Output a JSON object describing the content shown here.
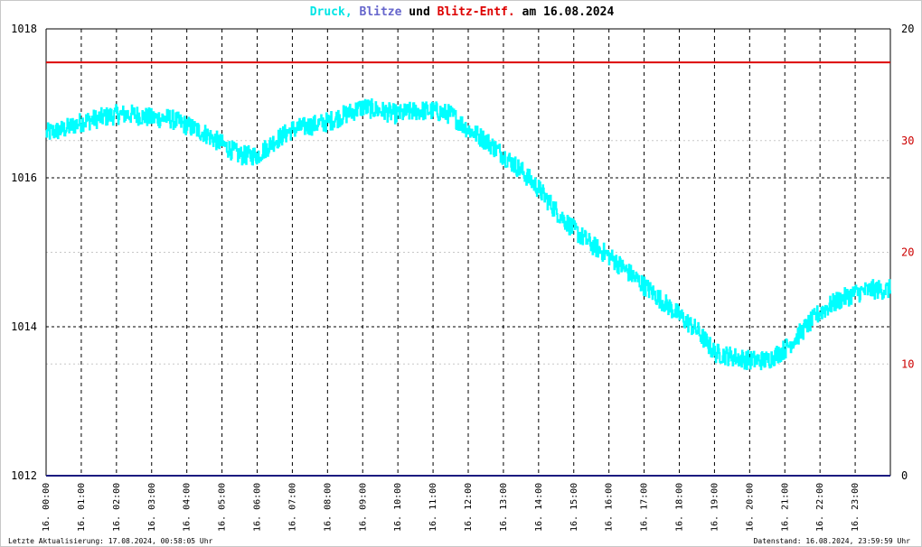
{
  "title": {
    "part1": "Druck,",
    "part2": "Blitze",
    "part3": "und",
    "part4": "Blitz-Entf.",
    "part5": "am 16.08.2024",
    "colors": {
      "druck": "#00e5e5",
      "blitze": "#6666cc",
      "blitz_entf": "#dd0000",
      "text": "#000000"
    }
  },
  "footer": {
    "left": "Letzte Aktualisierung: 17.08.2024, 00:58:05 Uhr",
    "right": "Datenstand: 16.08.2024, 23:59:59 Uhr"
  },
  "chart_data": {
    "type": "line",
    "x_tick_labels": [
      "16. 00:00",
      "16. 01:00",
      "16. 02:00",
      "16. 03:00",
      "16. 04:00",
      "16. 05:00",
      "16. 06:00",
      "16. 07:00",
      "16. 08:00",
      "16. 09:00",
      "16. 10:00",
      "16. 11:00",
      "16. 12:00",
      "16. 13:00",
      "16. 14:00",
      "16. 15:00",
      "16. 16:00",
      "16. 17:00",
      "16. 18:00",
      "16. 19:00",
      "16. 20:00",
      "16. 21:00",
      "16. 22:00",
      "16. 23:00"
    ],
    "x_range_hours": [
      0,
      24
    ],
    "y_left": {
      "ticks": [
        1012,
        1014,
        1016,
        1018
      ],
      "range": [
        1012,
        1018
      ]
    },
    "y_right_black": {
      "ticks": [
        0,
        20
      ],
      "range": [
        0,
        20
      ]
    },
    "y_right_red": {
      "ticks": [
        10,
        20,
        30
      ],
      "range": [
        0,
        40
      ]
    },
    "grid": true,
    "series": [
      {
        "name": "Druck",
        "color": "#00ffff",
        "axis": "left",
        "x": [
          0,
          0.5,
          1,
          1.5,
          2,
          2.5,
          3,
          3.5,
          4,
          4.5,
          5,
          5.5,
          6,
          6.5,
          7,
          7.5,
          8,
          8.5,
          9,
          9.5,
          10,
          10.5,
          11,
          11.5,
          12,
          12.5,
          13,
          13.5,
          14,
          14.5,
          15,
          15.5,
          16,
          16.5,
          17,
          17.5,
          18,
          18.5,
          19,
          19.5,
          20,
          20.5,
          21,
          21.5,
          22,
          22.5,
          23,
          23.5,
          24
        ],
        "y": [
          1016.6,
          1016.65,
          1016.75,
          1016.8,
          1016.85,
          1016.85,
          1016.8,
          1016.8,
          1016.7,
          1016.6,
          1016.45,
          1016.3,
          1016.3,
          1016.5,
          1016.65,
          1016.7,
          1016.75,
          1016.85,
          1016.95,
          1016.9,
          1016.85,
          1016.9,
          1016.9,
          1016.85,
          1016.65,
          1016.5,
          1016.3,
          1016.1,
          1015.85,
          1015.55,
          1015.3,
          1015.1,
          1014.95,
          1014.75,
          1014.55,
          1014.35,
          1014.15,
          1013.95,
          1013.65,
          1013.6,
          1013.55,
          1013.55,
          1013.7,
          1013.95,
          1014.2,
          1014.35,
          1014.45,
          1014.5,
          1014.5
        ]
      },
      {
        "name": "Blitze",
        "color": "#1a1a80",
        "axis": "right_black",
        "x": [
          0,
          24
        ],
        "y": [
          0,
          0
        ]
      },
      {
        "name": "Blitz-Entf.",
        "color": "#dd0000",
        "axis": "right_red",
        "x": [
          0,
          24
        ],
        "y": [
          37,
          37
        ]
      }
    ]
  }
}
